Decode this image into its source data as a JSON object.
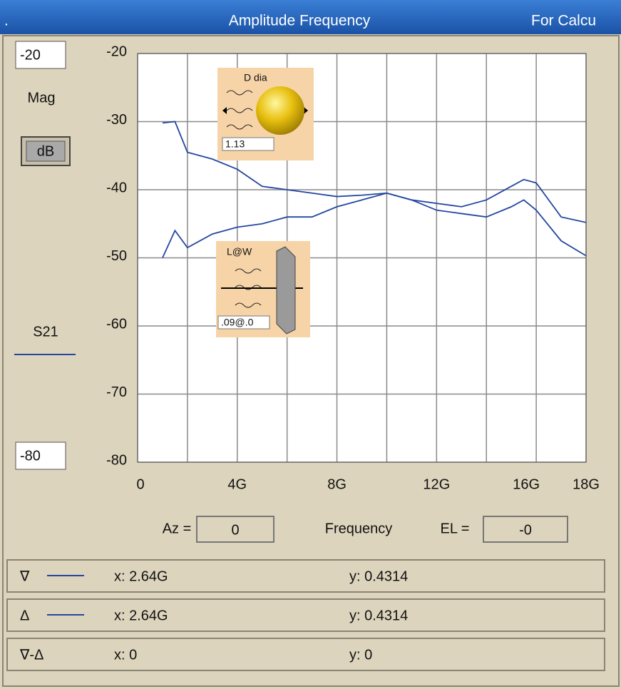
{
  "title_bar": {
    "left": ".",
    "title": "Amplitude Frequency",
    "right": "For Calcu"
  },
  "side": {
    "mag": "Mag",
    "unit_button": "dB"
  },
  "icons": {
    "sphere_label": "D dia",
    "sphere_value": "1.13",
    "plate_label": "L@W",
    "plate_value": ".09@.0"
  },
  "controls": {
    "az_label": "Az =",
    "az_value": "0",
    "el_label": "EL =",
    "el_value": "-0"
  },
  "markers": [
    {
      "symbol": "∇",
      "x": "x: 2.64G",
      "y": "y: 0.4314"
    },
    {
      "symbol": "Δ",
      "x": "x: 2.64G",
      "y": "y: 0.4314"
    },
    {
      "symbol": "∇-Δ",
      "x": "x: 0",
      "y": "y: 0"
    }
  ],
  "chart_data": {
    "type": "line",
    "x_label": "Frequency",
    "x": [
      1,
      1.5,
      2,
      3,
      4,
      5,
      6,
      7,
      8,
      9,
      10,
      11,
      12,
      13,
      14,
      15,
      15.5,
      16,
      17,
      18
    ],
    "series": [
      {
        "name": "S21",
        "color": "#2447a0",
        "values": [
          -30.2,
          -30,
          -34.5,
          -35.5,
          -37,
          -39.5,
          -40,
          -40.5,
          -41,
          -40.8,
          -40.5,
          -41.5,
          -42,
          -42.5,
          -41.5,
          -39.5,
          -38.5,
          -39,
          -44,
          -44.8
        ]
      },
      {
        "color": "#2447a0",
        "values": [
          -50,
          -46,
          -48.5,
          -46.5,
          -45.5,
          -45,
          -44,
          -44,
          -42.5,
          -41.5,
          -40.5,
          -41.5,
          -43,
          -43.5,
          -44,
          -42.5,
          -41.5,
          -43,
          -47.5,
          -49.7
        ]
      }
    ],
    "xlim": [
      0,
      18
    ],
    "xticks": [
      0,
      {
        "value": 4,
        "label": "4G"
      },
      {
        "value": 8,
        "label": "8G"
      },
      {
        "value": 12,
        "label": "12G"
      },
      {
        "value": 16,
        "label": "16G"
      },
      {
        "value": 18,
        "label": "18G"
      }
    ],
    "x_minor_ticks": [
      2,
      6,
      10,
      14
    ],
    "ylim": [
      -80,
      -20
    ],
    "yticks": [
      -20,
      -30,
      -40,
      -50,
      -60,
      -70,
      -80
    ],
    "grid": true
  }
}
